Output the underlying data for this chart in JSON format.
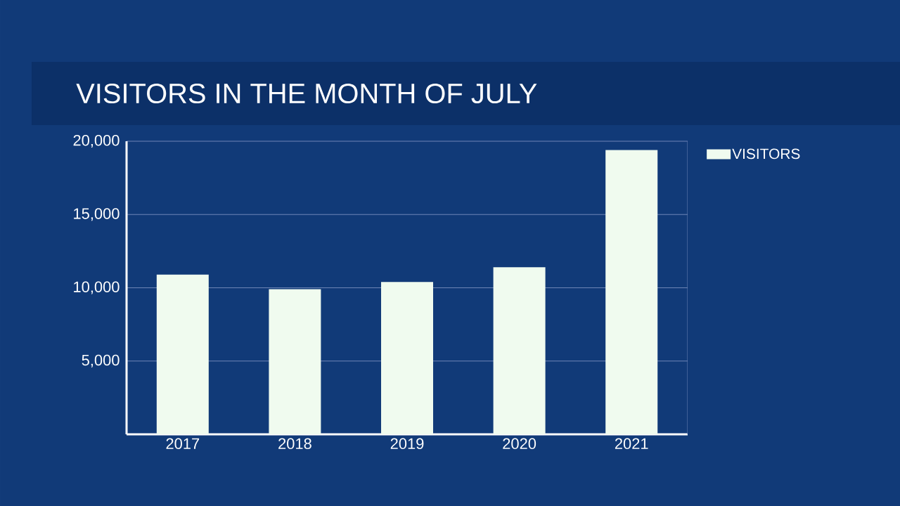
{
  "chart_data": {
    "type": "bar",
    "title": "VISITORS IN THE MONTH OF JULY",
    "categories": [
      "2017",
      "2018",
      "2019",
      "2020",
      "2021"
    ],
    "series": [
      {
        "name": "VISITORS",
        "color": "#f0fbef",
        "values": [
          10900,
          9900,
          10400,
          11400,
          19400
        ]
      }
    ],
    "ylim": [
      0,
      20000
    ],
    "yticks": [
      {
        "value": 5000,
        "label": "5,000"
      },
      {
        "value": 10000,
        "label": "10,000"
      },
      {
        "value": 15000,
        "label": "15,000"
      },
      {
        "value": 20000,
        "label": "20,000"
      }
    ],
    "grid": "y",
    "legend": "top right"
  }
}
